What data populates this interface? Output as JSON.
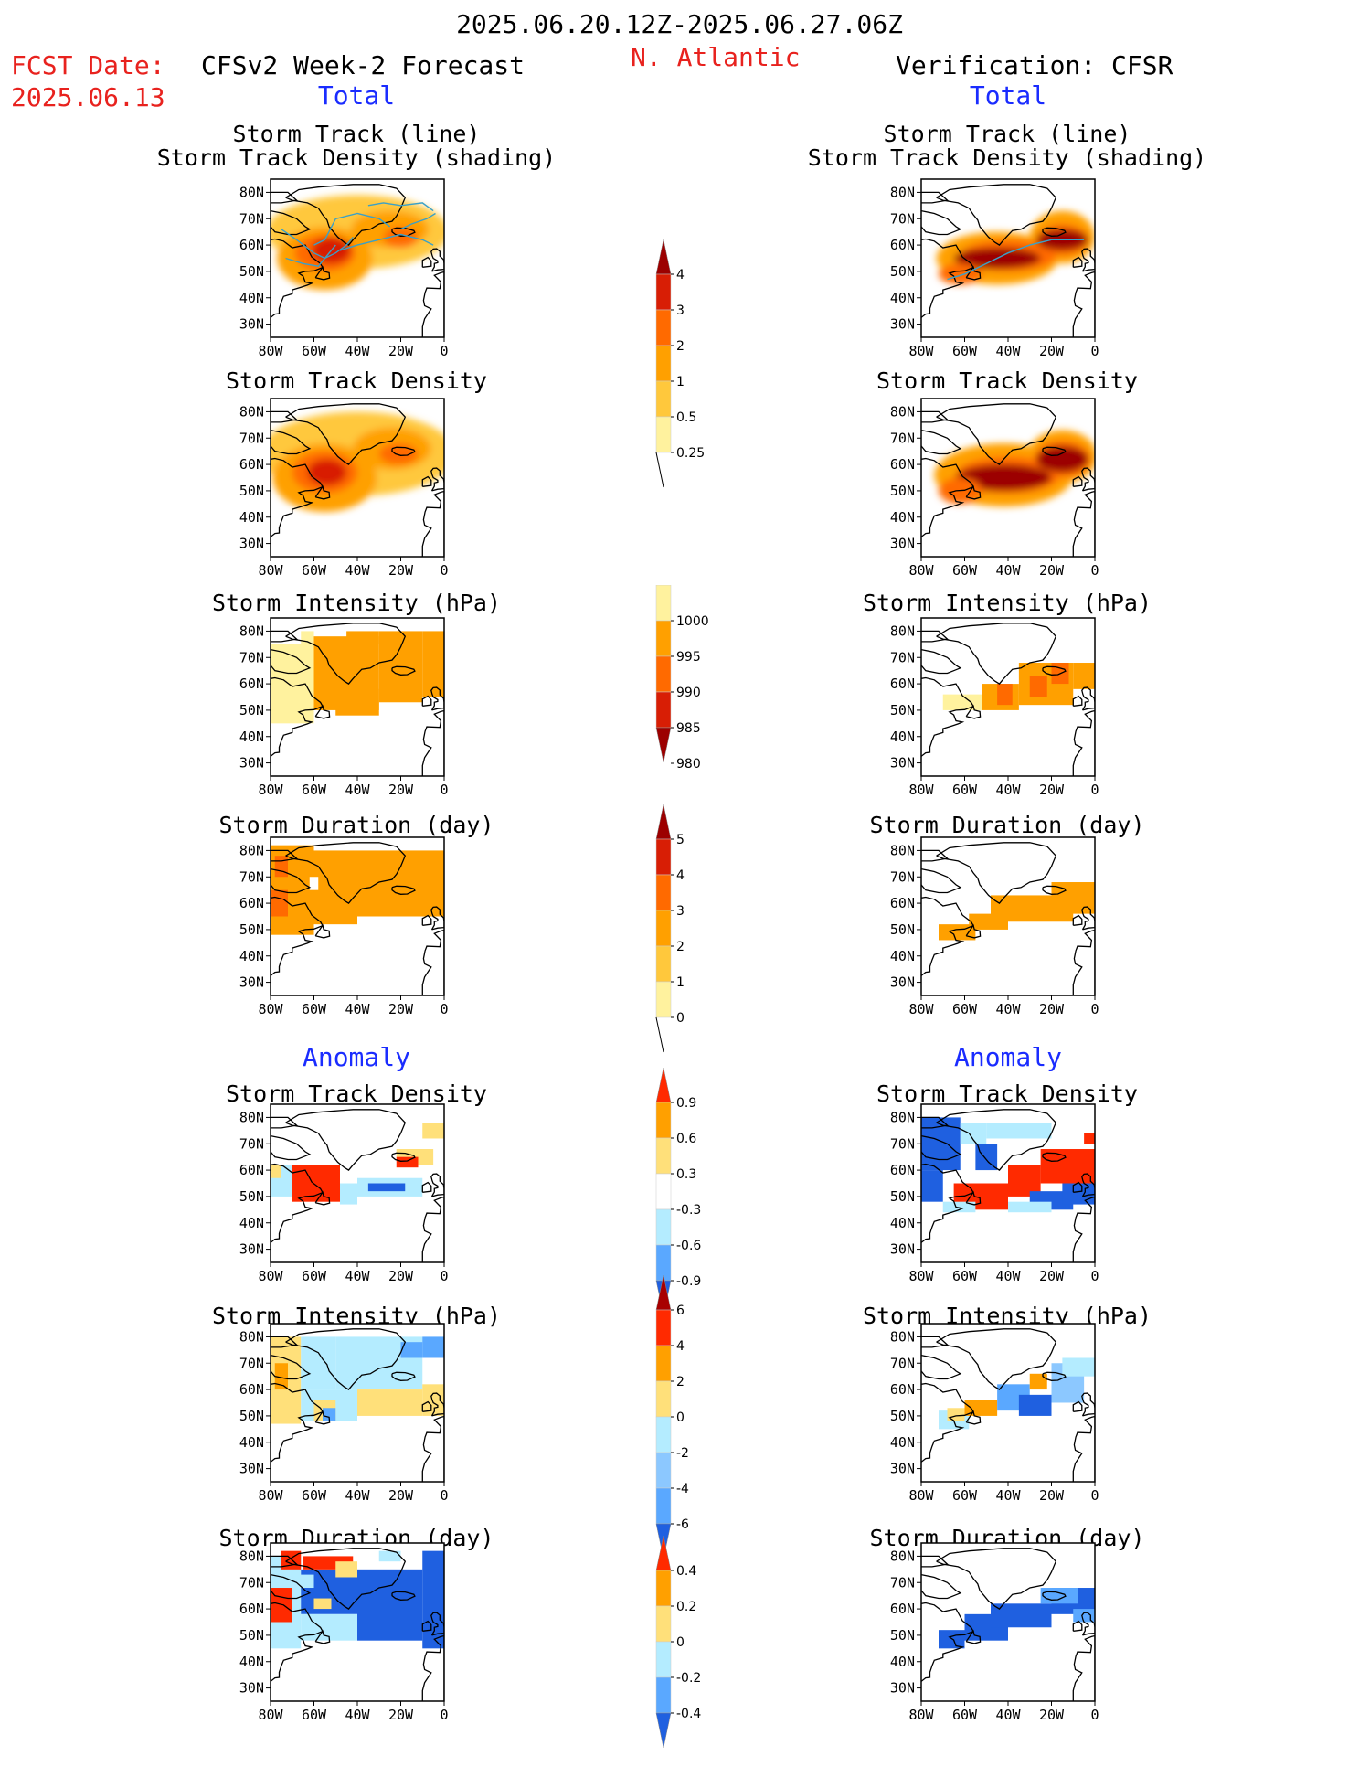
{
  "header": {
    "period": "2025.06.20.12Z-2025.06.27.06Z",
    "region": "N. Atlantic",
    "fcst_label": "FCST Date:",
    "fcst_date": "2025.06.13",
    "left_title": "CFSv2 Week-2 Forecast",
    "right_title": "Verification: CFSR",
    "total_label": "Total",
    "anomaly_label": "Anomaly"
  },
  "panel_titles": {
    "track_line": "Storm Track (line)",
    "track_density_shading": "Storm Track Density (shading)",
    "track_density": "Storm Track Density",
    "intensity": "Storm Intensity (hPa)",
    "duration": "Storm Duration (day)"
  },
  "axes": {
    "lat_labels": [
      "80N",
      "70N",
      "60N",
      "50N",
      "40N",
      "30N"
    ],
    "lon_labels": [
      "80W",
      "60W",
      "40W",
      "20W",
      "0"
    ]
  },
  "colorbars": {
    "density_total": {
      "labels": [
        "4",
        "3",
        "2",
        "1",
        "0.5",
        "0.25"
      ],
      "colors": [
        "#9c0000",
        "#d81e05",
        "#ff6a00",
        "#ffa000",
        "#ffc83c",
        "#fff29e"
      ]
    },
    "intensity_total": {
      "labels": [
        "1000",
        "995",
        "990",
        "985",
        "980"
      ],
      "colors": [
        "#fff29e",
        "#ffa000",
        "#ff6a00",
        "#d81e05",
        "#9c0000"
      ]
    },
    "duration_total": {
      "labels": [
        "5",
        "4",
        "3",
        "2",
        "1",
        "0"
      ],
      "colors": [
        "#9c0000",
        "#d81e05",
        "#ff6a00",
        "#ffa000",
        "#ffc83c",
        "#fff29e"
      ]
    },
    "density_anom": {
      "labels": [
        "0.9",
        "0.6",
        "0.3",
        "-0.3",
        "-0.6",
        "-0.9"
      ],
      "colors": [
        "#ff2a00",
        "#ffa000",
        "#ffe07a",
        "#ffffff",
        "#b4ecff",
        "#5aa8ff",
        "#1f60e0"
      ]
    },
    "intensity_anom": {
      "labels": [
        "6",
        "4",
        "2",
        "0",
        "-2",
        "-4",
        "-6"
      ],
      "colors": [
        "#a80000",
        "#ff2a00",
        "#ffa000",
        "#ffe07a",
        "#b4ecff",
        "#8cc8ff",
        "#5aa8ff",
        "#1f60e0"
      ]
    },
    "duration_anom": {
      "labels": [
        "0.4",
        "0.2",
        "0",
        "-0.2",
        "-0.4"
      ],
      "colors": [
        "#ff2a00",
        "#ffa000",
        "#ffe07a",
        "#b4ecff",
        "#5aa8ff",
        "#1f60e0"
      ]
    }
  }
}
